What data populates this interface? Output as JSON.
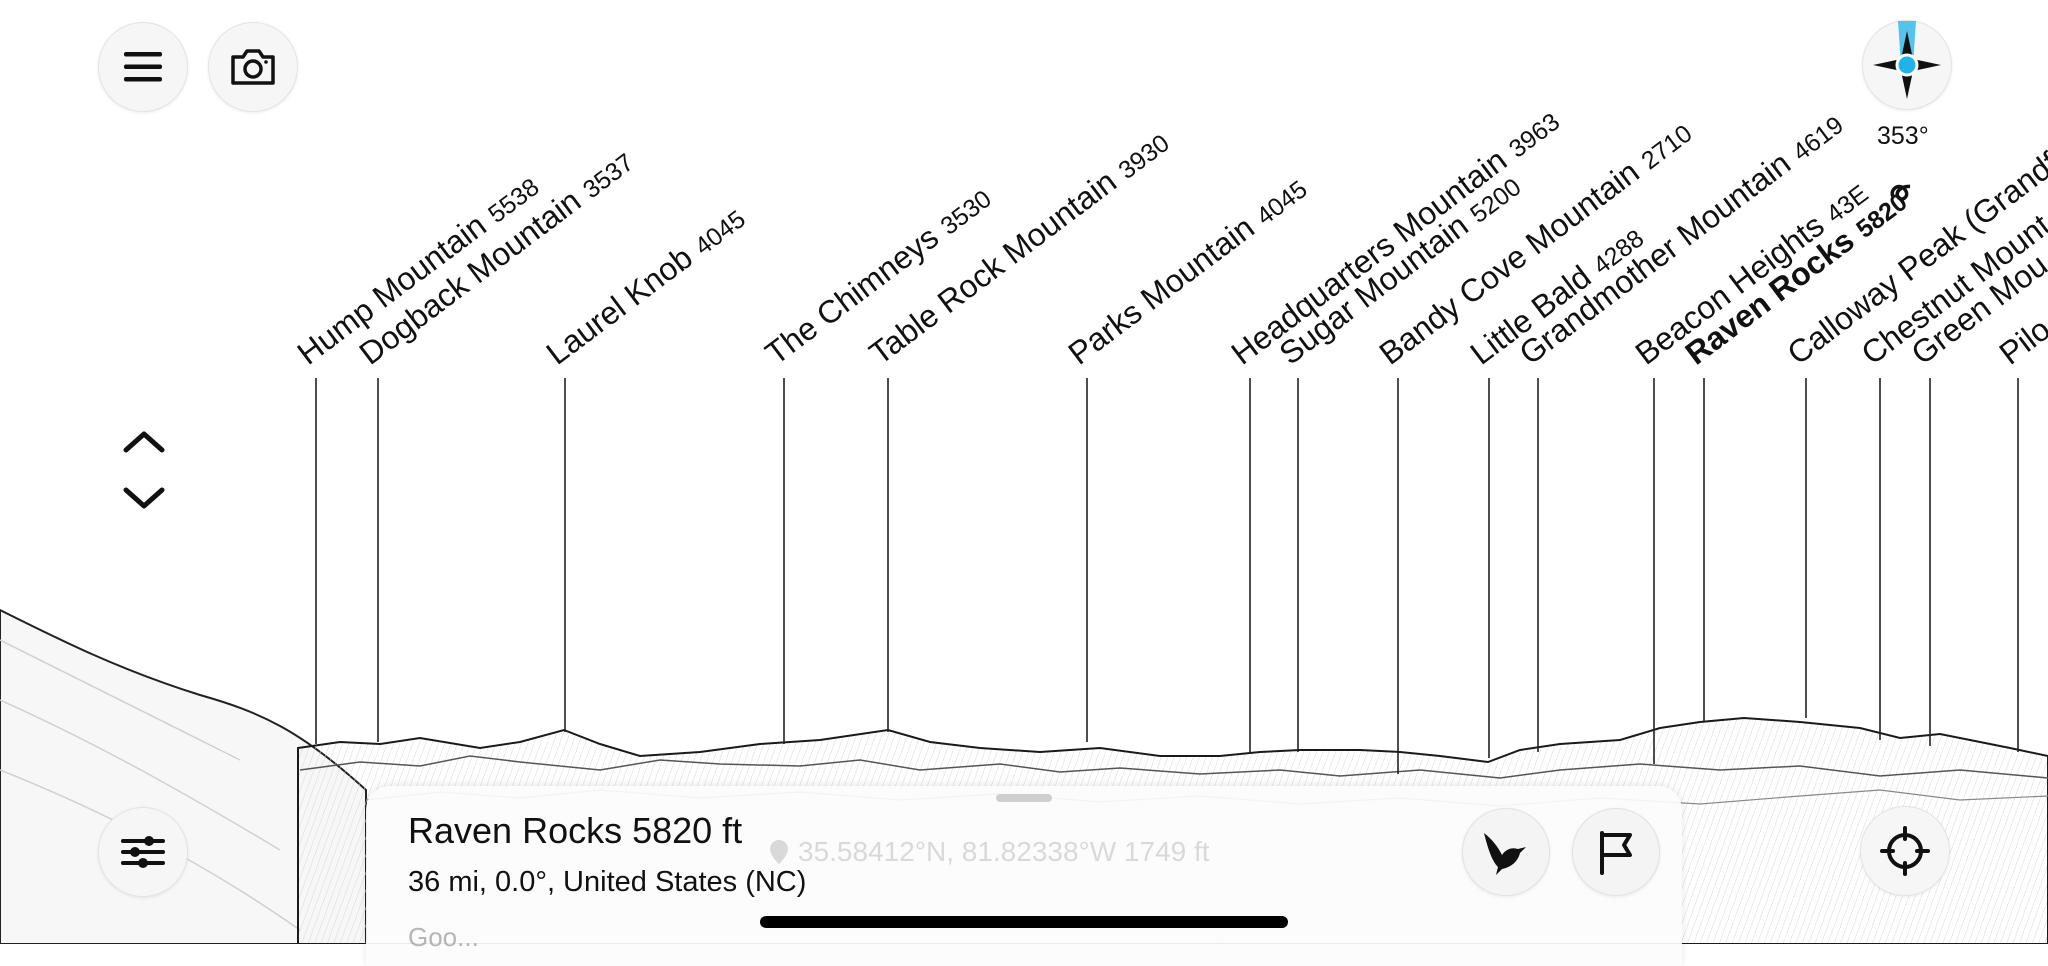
{
  "peaks": [
    {
      "name": "Hump Mountain",
      "elevation": "5538"
    },
    {
      "name": "Dogback Mountain",
      "elevation": "3537"
    },
    {
      "name": "Laurel Knob",
      "elevation": "4045"
    },
    {
      "name": "The Chimneys",
      "elevation": "3530"
    },
    {
      "name": "Table Rock Mountain",
      "elevation": "3930"
    },
    {
      "name": "Parks Mountain",
      "elevation": "4045"
    },
    {
      "name": "Headquarters Mountain",
      "elevation": "3963"
    },
    {
      "name": "Sugar Mountain",
      "elevation": "5200"
    },
    {
      "name": "Bandy Cove Mountain",
      "elevation": "2710"
    },
    {
      "name": "Little Bald",
      "elevation": "4288"
    },
    {
      "name": "Grandmother Mountain",
      "elevation": "4619"
    },
    {
      "name": "Beacon Heights",
      "elevation": "43E"
    },
    {
      "name": "Raven Rocks",
      "elevation": "5820",
      "selected": true
    },
    {
      "name": "Calloway Peak (Grandf",
      "elevation": ""
    },
    {
      "name": "Chestnut Mount",
      "elevation": ""
    },
    {
      "name": "Green Mou",
      "elevation": ""
    },
    {
      "name": "Pilo",
      "elevation": ""
    }
  ],
  "compass": {
    "heading": "353°",
    "accent_color": "#1fb3e6"
  },
  "info_sheet": {
    "title": "Raven Rocks 5820 ft",
    "subtitle": "36 mi, 0.0°, United States (NC)",
    "coordinates": "35.58412°N, 81.82338°W 1749 ft",
    "more": "Goo..."
  },
  "icons": {
    "menu": "hamburger-menu-icon",
    "camera": "camera-icon",
    "filters": "sliders-icon",
    "bird": "bird-icon",
    "flag": "flag-icon",
    "locate": "crosshair-icon",
    "loop": "loop-icon"
  }
}
